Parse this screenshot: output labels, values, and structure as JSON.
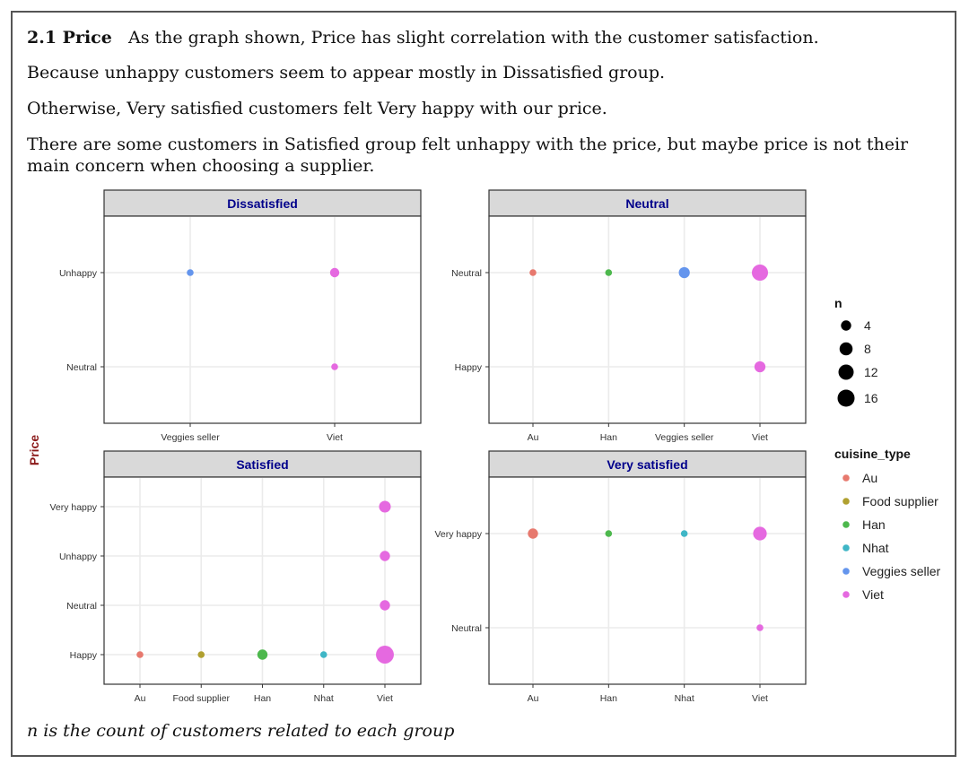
{
  "text": {
    "section_heading": "2.1 Price",
    "para1": "As the graph shown, Price has slight correlation with the customer satisfaction.",
    "para2": "Because unhappy customers seem to appear mostly in Dissatisfied group.",
    "para3": "Otherwise, Very satisfied customers felt Very happy with our price.",
    "para4": "There are some customers in Satisfied group felt unhappy with the price, but maybe price is not their main concern when choosing a supplier.",
    "note": "n is the count of customers related to each group"
  },
  "chart_data": {
    "type": "scatter",
    "ylabel": "Price",
    "colors": {
      "Au": "#E7796E",
      "Food supplier": "#B0A030",
      "Han": "#4DB84D",
      "Nhat": "#3FB6C6",
      "Veggies seller": "#6495ED",
      "Viet": "#E569E0"
    },
    "facet_title_color": "#00008B",
    "ylabel_color": "#8B1A1A",
    "facets": [
      {
        "title": "Dissatisfied",
        "x_categories": [
          "Veggies seller",
          "Viet"
        ],
        "y_categories": [
          "Neutral",
          "Unhappy"
        ],
        "points": [
          {
            "x": "Veggies seller",
            "y": "Unhappy",
            "n": 1,
            "cuisine": "Veggies seller"
          },
          {
            "x": "Viet",
            "y": "Unhappy",
            "n": 3,
            "cuisine": "Viet"
          },
          {
            "x": "Viet",
            "y": "Neutral",
            "n": 1,
            "cuisine": "Viet"
          }
        ]
      },
      {
        "title": "Neutral",
        "x_categories": [
          "Au",
          "Han",
          "Veggies seller",
          "Viet"
        ],
        "y_categories": [
          "Happy",
          "Neutral"
        ],
        "points": [
          {
            "x": "Au",
            "y": "Neutral",
            "n": 1,
            "cuisine": "Au"
          },
          {
            "x": "Han",
            "y": "Neutral",
            "n": 1,
            "cuisine": "Han"
          },
          {
            "x": "Veggies seller",
            "y": "Neutral",
            "n": 5,
            "cuisine": "Veggies seller"
          },
          {
            "x": "Viet",
            "y": "Neutral",
            "n": 14,
            "cuisine": "Viet"
          },
          {
            "x": "Viet",
            "y": "Happy",
            "n": 5,
            "cuisine": "Viet"
          }
        ]
      },
      {
        "title": "Satisfied",
        "x_categories": [
          "Au",
          "Food supplier",
          "Han",
          "Nhat",
          "Viet"
        ],
        "y_categories": [
          "Happy",
          "Neutral",
          "Unhappy",
          "Very happy"
        ],
        "points": [
          {
            "x": "Au",
            "y": "Happy",
            "n": 1,
            "cuisine": "Au"
          },
          {
            "x": "Food supplier",
            "y": "Happy",
            "n": 1,
            "cuisine": "Food supplier"
          },
          {
            "x": "Han",
            "y": "Happy",
            "n": 4,
            "cuisine": "Han"
          },
          {
            "x": "Nhat",
            "y": "Happy",
            "n": 1,
            "cuisine": "Nhat"
          },
          {
            "x": "Viet",
            "y": "Happy",
            "n": 18,
            "cuisine": "Viet"
          },
          {
            "x": "Viet",
            "y": "Neutral",
            "n": 4,
            "cuisine": "Viet"
          },
          {
            "x": "Viet",
            "y": "Unhappy",
            "n": 4,
            "cuisine": "Viet"
          },
          {
            "x": "Viet",
            "y": "Very happy",
            "n": 6,
            "cuisine": "Viet"
          }
        ]
      },
      {
        "title": "Very satisfied",
        "x_categories": [
          "Au",
          "Han",
          "Nhat",
          "Viet"
        ],
        "y_categories": [
          "Neutral",
          "Very happy"
        ],
        "points": [
          {
            "x": "Au",
            "y": "Very happy",
            "n": 4,
            "cuisine": "Au"
          },
          {
            "x": "Han",
            "y": "Very happy",
            "n": 1,
            "cuisine": "Han"
          },
          {
            "x": "Nhat",
            "y": "Very happy",
            "n": 1,
            "cuisine": "Nhat"
          },
          {
            "x": "Viet",
            "y": "Very happy",
            "n": 9,
            "cuisine": "Viet"
          },
          {
            "x": "Viet",
            "y": "Neutral",
            "n": 1,
            "cuisine": "Viet"
          }
        ]
      }
    ],
    "legend_size": {
      "title": "n",
      "values": [
        4,
        8,
        12,
        16
      ]
    },
    "legend_color": {
      "title": "cuisine_type",
      "entries": [
        "Au",
        "Food supplier",
        "Han",
        "Nhat",
        "Veggies seller",
        "Viet"
      ]
    },
    "legend_position": "right",
    "grid": true
  }
}
